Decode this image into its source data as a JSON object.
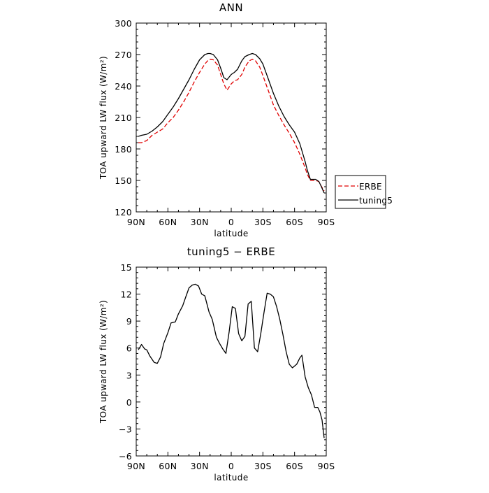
{
  "chart_data": [
    {
      "type": "line",
      "title": "ANN",
      "xlabel": "latitude",
      "ylabel": "TOA upward LW flux (W/m²)",
      "xlim": [
        90,
        -90
      ],
      "ylim": [
        120,
        300
      ],
      "xticks": [
        90,
        60,
        30,
        0,
        -30,
        -60,
        -90
      ],
      "xtick_labels": [
        "90N",
        "60N",
        "30N",
        "0",
        "30S",
        "60S",
        "90S"
      ],
      "yticks": [
        120,
        150,
        180,
        210,
        240,
        270,
        300
      ],
      "ytick_labels": [
        "120",
        "150",
        "180",
        "210",
        "240",
        "270",
        "300"
      ],
      "legend_position": "outside-right",
      "series": [
        {
          "name": "ERBE",
          "color": "#e00000",
          "style": "dashed",
          "x": [
            88,
            85,
            80,
            75,
            70,
            65,
            60,
            55,
            50,
            45,
            40,
            35,
            30,
            25,
            22,
            20,
            17,
            13,
            10,
            7,
            4,
            0,
            -3,
            -6,
            -10,
            -13,
            -17,
            -20,
            -23,
            -27,
            -30,
            -35,
            -40,
            -45,
            -50,
            -55,
            -60,
            -65,
            -70,
            -72,
            -75,
            -80,
            -83,
            -85,
            -88
          ],
          "y": [
            186,
            186,
            188,
            193,
            196,
            199,
            205,
            210,
            217,
            225,
            234,
            244,
            253,
            261,
            264.5,
            265.5,
            265,
            260,
            251,
            242,
            236,
            242,
            245,
            246,
            251,
            258,
            264,
            265.5,
            264,
            258,
            250,
            236,
            222,
            212,
            203,
            195,
            186,
            175,
            162,
            156,
            150,
            150,
            149,
            145,
            140
          ]
        },
        {
          "name": "tuning5",
          "color": "#000000",
          "style": "solid",
          "x": [
            88,
            85,
            80,
            75,
            70,
            65,
            60,
            55,
            50,
            45,
            40,
            35,
            30,
            25,
            22,
            20,
            17,
            13,
            10,
            7,
            4,
            0,
            -3,
            -6,
            -10,
            -13,
            -17,
            -20,
            -23,
            -27,
            -30,
            -35,
            -40,
            -45,
            -50,
            -55,
            -60,
            -65,
            -70,
            -72,
            -75,
            -80,
            -83,
            -85,
            -88
          ],
          "y": [
            192,
            193,
            194,
            197,
            201,
            206,
            213,
            220,
            228,
            237,
            246,
            256,
            265,
            270,
            271,
            271,
            270,
            265,
            257,
            248,
            246,
            251,
            253,
            256,
            264,
            268,
            270,
            271,
            270,
            266,
            261,
            247,
            233,
            221,
            211,
            203,
            196,
            185,
            168,
            160,
            151,
            151,
            149,
            145,
            138
          ]
        }
      ]
    },
    {
      "type": "line",
      "title": "tuning5 − ERBE",
      "xlabel": "latitude",
      "ylabel": "TOA upward LW flux (W/m²)",
      "xlim": [
        90,
        -90
      ],
      "ylim": [
        -6,
        15
      ],
      "xticks": [
        90,
        60,
        30,
        0,
        -30,
        -60,
        -90
      ],
      "xtick_labels": [
        "90N",
        "60N",
        "30N",
        "0",
        "30S",
        "60S",
        "90S"
      ],
      "yticks": [
        -6,
        -3,
        0,
        3,
        6,
        9,
        12,
        15
      ],
      "ytick_labels": [
        "−6",
        "−3",
        "0",
        "3",
        "6",
        "9",
        "12",
        "15"
      ],
      "series": [
        {
          "color": "#000000",
          "style": "solid",
          "x": [
            88,
            85,
            82,
            80,
            77,
            73,
            70,
            67,
            64,
            60,
            57,
            53,
            50,
            46,
            43,
            40,
            37,
            34,
            31,
            28,
            25,
            21,
            18,
            14,
            11,
            8,
            5,
            2,
            -1,
            -4,
            -7,
            -10,
            -13,
            -16,
            -19,
            -22,
            -25,
            -28,
            -31,
            -34,
            -37,
            -40,
            -43,
            -46,
            -49,
            -52,
            -55,
            -58,
            -62,
            -65,
            -67,
            -70,
            -73,
            -76,
            -79,
            -82,
            -84,
            -86,
            -88
          ],
          "y": [
            5.8,
            6.4,
            5.9,
            5.8,
            5.1,
            4.4,
            4.3,
            5.0,
            6.5,
            7.7,
            8.8,
            8.9,
            9.8,
            10.7,
            11.7,
            12.7,
            13.0,
            13.1,
            12.9,
            12.0,
            11.8,
            10.0,
            9.2,
            7.2,
            6.5,
            5.9,
            5.4,
            7.8,
            10.6,
            10.4,
            7.6,
            6.8,
            7.3,
            10.9,
            11.2,
            6.0,
            5.6,
            7.6,
            9.9,
            12.1,
            12.0,
            11.7,
            10.6,
            9.2,
            7.5,
            5.6,
            4.2,
            3.8,
            4.2,
            4.9,
            5.2,
            2.8,
            1.6,
            0.8,
            -0.6,
            -0.6,
            -1.1,
            -2.0,
            -4.0
          ]
        }
      ]
    }
  ]
}
